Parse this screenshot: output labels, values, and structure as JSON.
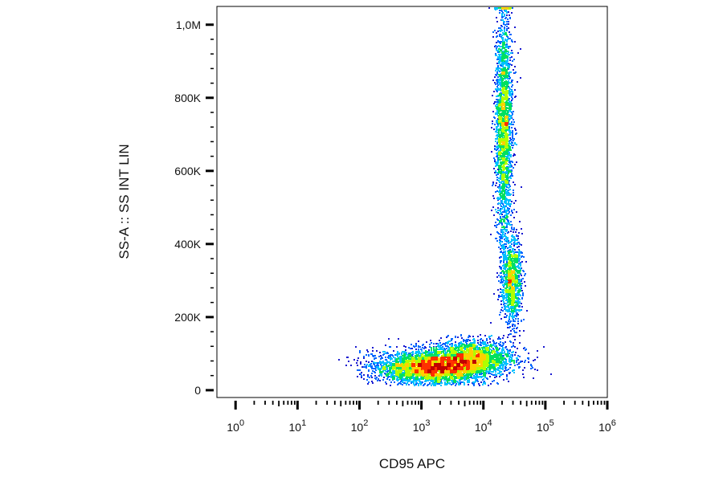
{
  "chart_data": {
    "type": "scatter",
    "style": "density-dot-plot",
    "xlabel": "CD95 APC",
    "ylabel": "SS-A :: SS INT LIN",
    "x_scale": "log",
    "x_range": [
      0.5,
      1000000
    ],
    "x_ticks": [
      {
        "value": 1,
        "base": "10",
        "exp": "0"
      },
      {
        "value": 10,
        "base": "10",
        "exp": "1"
      },
      {
        "value": 100,
        "base": "10",
        "exp": "2"
      },
      {
        "value": 1000,
        "base": "10",
        "exp": "3"
      },
      {
        "value": 10000,
        "base": "10",
        "exp": "4"
      },
      {
        "value": 100000,
        "base": "10",
        "exp": "5"
      },
      {
        "value": 1000000,
        "base": "10",
        "exp": "6"
      }
    ],
    "y_scale": "linear",
    "y_range": [
      -20000,
      1050000
    ],
    "y_ticks": [
      {
        "value": 0,
        "label": "0"
      },
      {
        "value": 200000,
        "label": "200K"
      },
      {
        "value": 400000,
        "label": "400K"
      },
      {
        "value": 600000,
        "label": "600K"
      },
      {
        "value": 800000,
        "label": "800K"
      },
      {
        "value": 1000000,
        "label": "1,0M"
      }
    ],
    "grid": false,
    "populations": [
      {
        "name": "",
        "log10_x_center": 3.15,
        "log10_x_sd": 0.45,
        "y_center": 65000,
        "y_sd": 22000,
        "weight": 0.4
      },
      {
        "name": "",
        "log10_x_center": 3.8,
        "log10_x_sd": 0.35,
        "y_center": 90000,
        "y_sd": 25000,
        "weight": 0.22
      },
      {
        "name": "",
        "log10_x_center": 4.45,
        "log10_x_sd": 0.08,
        "y_center": 300000,
        "y_sd": 60000,
        "weight": 0.12
      },
      {
        "name": "",
        "log10_x_center": 4.32,
        "log10_x_sd": 0.07,
        "y_center": 720000,
        "y_sd": 170000,
        "weight": 0.26
      }
    ],
    "color_scale": [
      "#1a1ad0",
      "#0066ff",
      "#00c0ff",
      "#00e060",
      "#b0ff00",
      "#ffd000",
      "#ff3000",
      "#c00000"
    ]
  }
}
